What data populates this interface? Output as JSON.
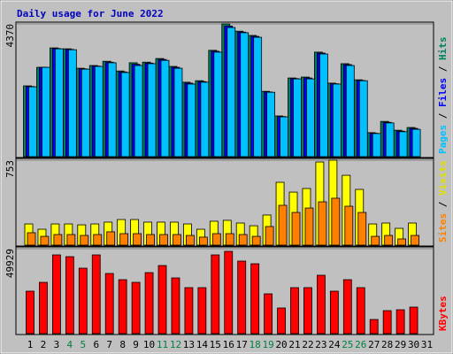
{
  "chart_data": [
    {
      "type": "bar",
      "title": "Daily usage for June 2022",
      "ylim": [
        0,
        4370
      ],
      "yticks": [
        4370
      ],
      "legend_separator": " / ",
      "series": [
        {
          "name": "Pages",
          "color": "#00c0ff",
          "values": [
            2300,
            2940,
            3550,
            3520,
            2880,
            2970,
            3090,
            2770,
            3000,
            3060,
            3170,
            2910,
            2390,
            2450,
            3440,
            4250,
            4080,
            3930,
            2120,
            1310,
            2560,
            2560,
            3380,
            2390,
            3000,
            2500,
            760,
            1110,
            820,
            900,
            null
          ]
        },
        {
          "name": "Files",
          "color": "#0000ff",
          "values": [
            2310,
            2940,
            3560,
            3530,
            2890,
            2980,
            3110,
            2790,
            3040,
            3080,
            3200,
            2940,
            2420,
            2470,
            3470,
            4300,
            4100,
            3960,
            2130,
            1320,
            2570,
            2590,
            3410,
            2400,
            3030,
            2510,
            770,
            1130,
            840,
            930,
            null
          ]
        },
        {
          "name": "Hits",
          "color": "#00805c",
          "values": [
            2330,
            2940,
            3580,
            3550,
            2910,
            3000,
            3140,
            2820,
            3090,
            3110,
            3230,
            2970,
            2450,
            2500,
            3500,
            4370,
            4130,
            3990,
            2150,
            1340,
            2590,
            2620,
            3440,
            2420,
            3060,
            2530,
            790,
            1160,
            870,
            960,
            null
          ]
        }
      ]
    },
    {
      "type": "bar",
      "ylim": [
        0,
        753
      ],
      "yticks": [
        753
      ],
      "legend_separator": " / ",
      "series": [
        {
          "name": "Sites",
          "color": "#ff8000",
          "values": [
            110,
            78,
            94,
            94,
            86,
            94,
            118,
            102,
            102,
            94,
            94,
            94,
            86,
            71,
            102,
            102,
            94,
            78,
            165,
            353,
            290,
            329,
            384,
            416,
            345,
            290,
            78,
            86,
            55,
            86,
            null
          ]
        },
        {
          "name": "Visits",
          "color": "#ffff00",
          "values": [
            188,
            141,
            188,
            188,
            180,
            188,
            204,
            227,
            227,
            204,
            204,
            204,
            188,
            141,
            212,
            220,
            196,
            172,
            267,
            557,
            470,
            502,
            737,
            753,
            619,
            494,
            188,
            196,
            149,
            196,
            null
          ]
        }
      ]
    },
    {
      "type": "bar",
      "ylim": [
        0,
        49929
      ],
      "yticks": [
        49929
      ],
      "categories": [
        "1",
        "2",
        "3",
        "4",
        "5",
        "6",
        "7",
        "8",
        "9",
        "10",
        "11",
        "12",
        "13",
        "14",
        "15",
        "16",
        "17",
        "18",
        "19",
        "20",
        "21",
        "22",
        "23",
        "24",
        "25",
        "26",
        "27",
        "28",
        "29",
        "30",
        "31"
      ],
      "category_colors": [
        "#000000",
        "#000000",
        "#000000",
        "#008040",
        "#008040",
        "#000000",
        "#000000",
        "#000000",
        "#000000",
        "#000000",
        "#008040",
        "#008040",
        "#000000",
        "#000000",
        "#000000",
        "#000000",
        "#000000",
        "#008040",
        "#008040",
        "#000000",
        "#000000",
        "#000000",
        "#000000",
        "#000000",
        "#008040",
        "#008040",
        "#000000",
        "#000000",
        "#000000",
        "#000000",
        "#000000"
      ],
      "series": [
        {
          "name": "KBytes",
          "color": "#ff0000",
          "values": [
            24960,
            30160,
            46280,
            45240,
            38480,
            46280,
            35360,
            31720,
            30160,
            35880,
            40040,
            32760,
            27040,
            27040,
            46280,
            48360,
            42640,
            41080,
            23400,
            15080,
            27040,
            27040,
            34320,
            24960,
            31720,
            27040,
            8320,
            13520,
            14040,
            15600,
            null
          ]
        }
      ]
    }
  ]
}
